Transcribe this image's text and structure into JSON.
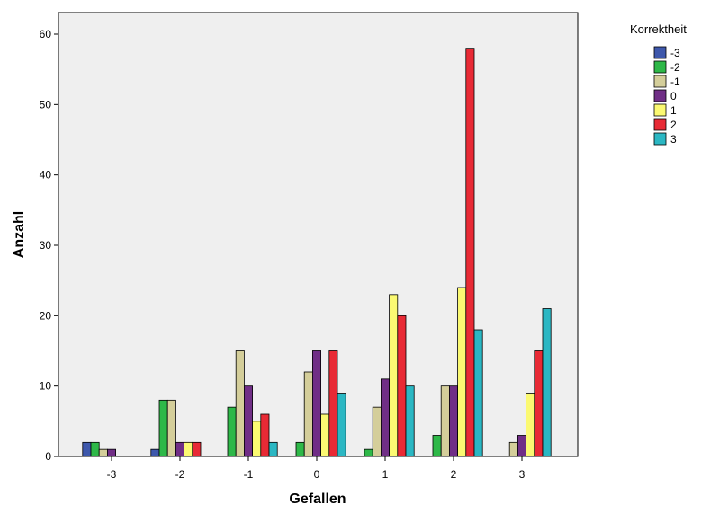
{
  "chart_data": {
    "type": "bar",
    "xlabel": "Gefallen",
    "ylabel": "Anzahl",
    "categories": [
      "-3",
      "-2",
      "-1",
      "0",
      "1",
      "2",
      "3"
    ],
    "ylim": [
      0,
      60
    ],
    "yticks": [
      "0",
      "10",
      "20",
      "30",
      "40",
      "50",
      "60"
    ],
    "grid": false,
    "legend": {
      "title": "Korrektheit",
      "placement": "right"
    },
    "series": [
      {
        "name": "-3",
        "color": "#3E58AC",
        "values": [
          2,
          1,
          0,
          0,
          0,
          0,
          0
        ]
      },
      {
        "name": "-2",
        "color": "#2EB848",
        "values": [
          2,
          8,
          7,
          2,
          1,
          3,
          0
        ]
      },
      {
        "name": "-1",
        "color": "#D4CE9A",
        "values": [
          1,
          8,
          15,
          12,
          7,
          10,
          2
        ]
      },
      {
        "name": "0",
        "color": "#702E86",
        "values": [
          1,
          2,
          10,
          15,
          11,
          10,
          3
        ]
      },
      {
        "name": "1",
        "color": "#FBF972",
        "values": [
          0,
          2,
          5,
          6,
          23,
          24,
          9
        ]
      },
      {
        "name": "2",
        "color": "#E82A35",
        "values": [
          0,
          2,
          6,
          15,
          20,
          58,
          15
        ]
      },
      {
        "name": "3",
        "color": "#2BB7C3",
        "values": [
          0,
          0,
          2,
          9,
          10,
          18,
          21
        ]
      }
    ]
  }
}
